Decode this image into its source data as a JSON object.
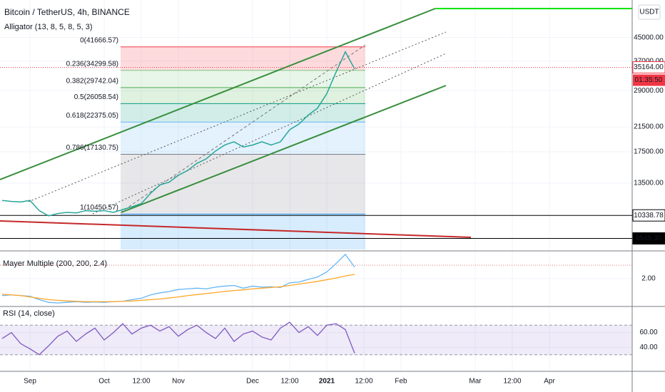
{
  "header": {
    "symbol": "Bitcoin / TetherUS, 4h, BINANCE",
    "indicator": "Alligator (13, 8, 5, 8, 5, 3)",
    "currency": "USDT",
    "countdown": "01:35:50"
  },
  "chart_data": [
    {
      "type": "line",
      "log_scale": true,
      "grid": true,
      "categories": [
        null,
        null,
        null,
        "Sep",
        null,
        null,
        null,
        null,
        null,
        null,
        null,
        "Oct",
        null,
        null,
        null,
        "12:00",
        null,
        null,
        null,
        "Nov",
        null,
        null,
        null,
        null,
        null,
        null,
        null,
        "Dec",
        null,
        null,
        null,
        "12:00",
        null,
        null,
        null,
        "2021",
        null,
        null,
        null,
        "12:00",
        null,
        null,
        null,
        "Feb",
        null,
        null,
        null,
        null,
        null,
        null,
        null,
        "Mar",
        null,
        null,
        null,
        "12:00",
        null,
        null,
        null,
        "Apr",
        null,
        null,
        null,
        null,
        null,
        null,
        null,
        null
      ],
      "ylim": [
        7800,
        60300
      ],
      "yticks": [
        {
          "value": 45000,
          "label": "45000.00"
        },
        {
          "value": 37000,
          "label": "37000.00"
        },
        {
          "value": 29000,
          "label": "29000.00"
        },
        {
          "value": 21500,
          "label": "21500.00"
        },
        {
          "value": 17500,
          "label": "17500.00"
        },
        {
          "value": 13500,
          "label": "13500.00"
        }
      ],
      "series": [
        {
          "color": "#26a69a",
          "values": [
            11700,
            11600,
            11550,
            11700,
            10750,
            10300,
            10500,
            10600,
            10550,
            10750,
            10700,
            10750,
            10600,
            10850,
            11100,
            11400,
            12400,
            13300,
            13600,
            14400,
            15000,
            15900,
            16500,
            17600,
            18500,
            19000,
            18200,
            18500,
            19000,
            18500,
            19000,
            21000,
            22000,
            23700,
            25100,
            28300,
            33800,
            40000,
            34700,
            null,
            null,
            null,
            null,
            null,
            null,
            null,
            null,
            null,
            null,
            null,
            null,
            null,
            null,
            null,
            null,
            null,
            null,
            null,
            null,
            null,
            null,
            null,
            null,
            null,
            null,
            null,
            null,
            null
          ]
        }
      ],
      "last_price": {
        "value": 35164,
        "label": "35164.00",
        "color": "#f23645"
      },
      "levels": [
        10338.78,
        {
          "value": 8545.3,
          "label": "8545.30"
        }
      ],
      "fib_levels": [
        {
          "label": "0(41666.57)",
          "value": 41666.57,
          "color": "#f23645"
        },
        {
          "label": "0.236(34299.58)",
          "value": 34299.58,
          "color": "#81c784"
        },
        {
          "label": "0.382(29742.04)",
          "value": 29742.04,
          "color": "#4caf50"
        },
        {
          "label": "0.5(26058.54)",
          "value": 26058.54,
          "color": "#089981"
        },
        {
          "label": "0.618(22375.05)",
          "value": 22375.05,
          "color": "#64b5f6"
        },
        {
          "label": "0.786(17130.75)",
          "value": 17130.75,
          "color": "#787b86"
        },
        {
          "label": "1(10450.57)",
          "value": 10450.57,
          "color": "#2196f3"
        }
      ]
    },
    {
      "type": "line",
      "title": "Mayer Multiple (200, 200, 2.4)",
      "ylim": [
        1.22,
        2.76
      ],
      "yticks": [
        {
          "value": 2,
          "label": "2.00"
        }
      ],
      "threshold": 2.4,
      "series": [
        {
          "color": "#64b5f6",
          "values": [
            1.5,
            1.52,
            1.5,
            1.48,
            1.38,
            1.3,
            1.28,
            1.3,
            1.32,
            1.3,
            1.31,
            1.3,
            1.32,
            1.33,
            1.38,
            1.42,
            1.52,
            1.58,
            1.62,
            1.68,
            1.7,
            1.72,
            1.7,
            1.75,
            1.78,
            1.8,
            1.72,
            1.78,
            1.75,
            1.76,
            1.74,
            1.88,
            1.9,
            1.98,
            2.05,
            2.2,
            2.45,
            2.72,
            2.34
          ]
        },
        {
          "color": "#ffa726",
          "values": [
            1.54,
            1.52,
            1.5,
            1.46,
            1.42,
            1.38,
            1.36,
            1.34,
            1.33,
            1.32,
            1.32,
            1.32,
            1.32,
            1.33,
            1.34,
            1.36,
            1.38,
            1.4,
            1.43,
            1.46,
            1.5,
            1.53,
            1.56,
            1.59,
            1.62,
            1.65,
            1.67,
            1.7,
            1.72,
            1.74,
            1.76,
            1.8,
            1.84,
            1.88,
            1.92,
            1.97,
            2.02,
            2.08,
            2.13
          ]
        }
      ]
    },
    {
      "type": "line",
      "title": "RSI (14, close)",
      "ylim": [
        9.5,
        91.4
      ],
      "yticks": [
        {
          "value": 60,
          "label": "60.00"
        },
        {
          "value": 40,
          "label": "40.00"
        }
      ],
      "band": [
        30,
        70
      ],
      "series": [
        {
          "color": "#7e57c2",
          "values": [
            52,
            60,
            45,
            38,
            30,
            42,
            55,
            62,
            48,
            58,
            66,
            50,
            60,
            72,
            58,
            66,
            70,
            62,
            68,
            55,
            64,
            70,
            60,
            52,
            66,
            48,
            58,
            62,
            54,
            50,
            66,
            74,
            60,
            68,
            56,
            70,
            72,
            64,
            32
          ]
        }
      ]
    }
  ]
}
